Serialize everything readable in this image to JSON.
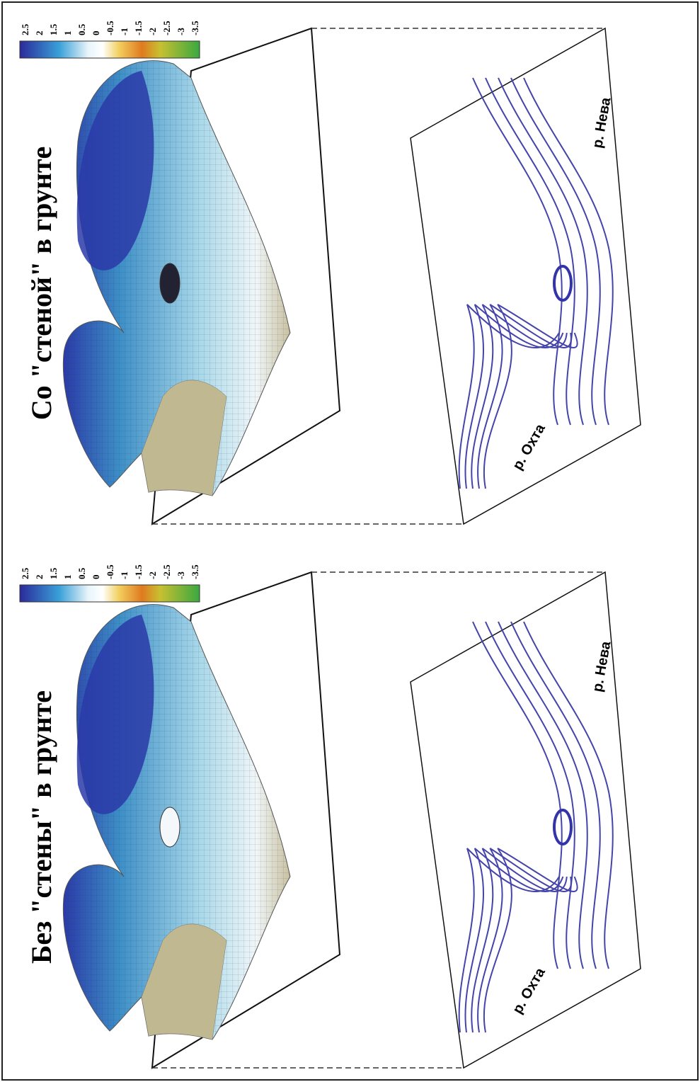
{
  "panels": [
    {
      "title": "Со \"стеной\" в грунте",
      "colorbar": {
        "ticks": [
          "2.5",
          "2",
          "1.5",
          "1",
          "0.5",
          "0",
          "-0.5",
          "-1",
          "-1.5",
          "-2",
          "-2.5",
          "-3",
          "-3.5"
        ]
      },
      "rivers": [
        "р. Нева",
        "р. Охта"
      ]
    },
    {
      "title": "Без \"стены\" в грунте",
      "colorbar": {
        "ticks": [
          "2.5",
          "2",
          "1.5",
          "1",
          "0.5",
          "0",
          "-0.5",
          "-1",
          "-1.5",
          "-2",
          "-2.5",
          "-3",
          "-3.5"
        ]
      },
      "rivers": [
        "р. Нева",
        "р. Охта"
      ]
    }
  ]
}
